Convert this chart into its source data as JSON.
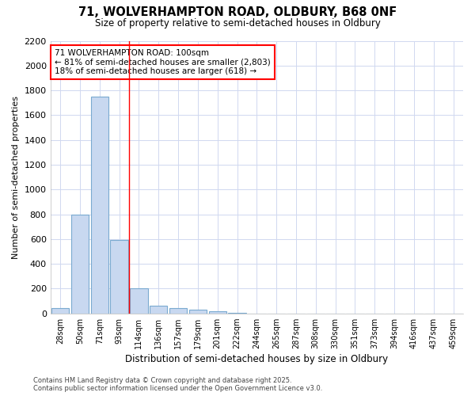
{
  "title1": "71, WOLVERHAMPTON ROAD, OLDBURY, B68 0NF",
  "title2": "Size of property relative to semi-detached houses in Oldbury",
  "xlabel": "Distribution of semi-detached houses by size in Oldbury",
  "ylabel": "Number of semi-detached properties",
  "bins": [
    "28sqm",
    "50sqm",
    "71sqm",
    "93sqm",
    "114sqm",
    "136sqm",
    "157sqm",
    "179sqm",
    "201sqm",
    "222sqm",
    "244sqm",
    "265sqm",
    "287sqm",
    "308sqm",
    "330sqm",
    "351sqm",
    "373sqm",
    "394sqm",
    "416sqm",
    "437sqm",
    "459sqm"
  ],
  "values": [
    40,
    800,
    1750,
    590,
    205,
    60,
    45,
    30,
    20,
    5,
    0,
    0,
    0,
    0,
    0,
    0,
    0,
    0,
    0,
    0,
    0
  ],
  "bar_color": "#c8d8f0",
  "bar_edgecolor": "#7aaad0",
  "redline_x": 3.5,
  "annotation_text_line1": "71 WOLVERHAMPTON ROAD: 100sqm",
  "annotation_text_line2": "← 81% of semi-detached houses are smaller (2,803)",
  "annotation_text_line3": "18% of semi-detached houses are larger (618) →",
  "ylim_max": 2200,
  "yticks": [
    0,
    200,
    400,
    600,
    800,
    1000,
    1200,
    1400,
    1600,
    1800,
    2000,
    2200
  ],
  "background_color": "#ffffff",
  "grid_color": "#d0d8f0",
  "footer_line1": "Contains HM Land Registry data © Crown copyright and database right 2025.",
  "footer_line2": "Contains public sector information licensed under the Open Government Licence v3.0."
}
